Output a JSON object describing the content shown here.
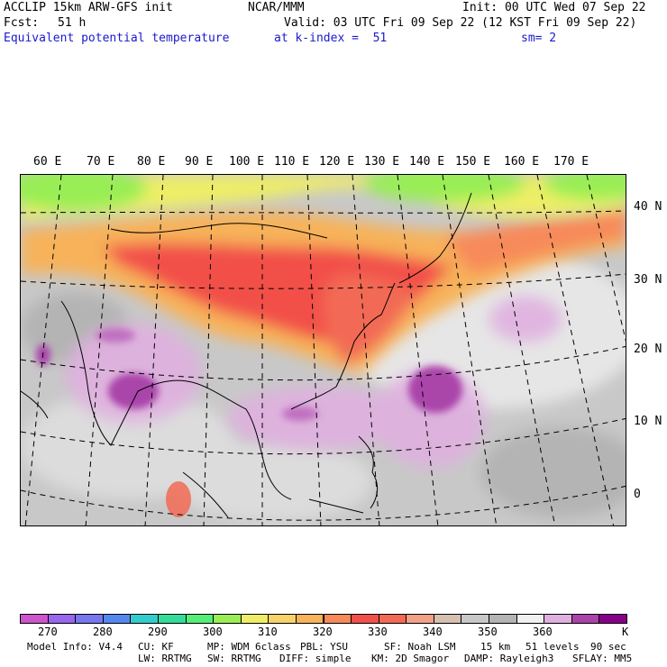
{
  "header": {
    "model": "ACCLIP 15km ARW-GFS init",
    "org": "NCAR/MMM",
    "init": "Init: 00 UTC Wed 07 Sep 22",
    "fcst_label": "Fcst:",
    "fcst_value": "51 h",
    "valid": "Valid: 03 UTC Fri 09 Sep 22 (12 KST Fri 09 Sep 22)",
    "field": "Equivalent potential temperature",
    "level": "at k-index =  51",
    "smooth": "sm= 2"
  },
  "map": {
    "lon_labels": [
      "60 E",
      "70 E",
      "80 E",
      "90 E",
      "100 E",
      "110 E",
      "120 E",
      "130 E",
      "140 E",
      "150 E",
      "160 E",
      "170 E"
    ],
    "lat_labels": [
      "40 N",
      "30 N",
      "20 N",
      "10 N",
      "0"
    ]
  },
  "colorbar": {
    "colors": [
      "#cc55cc",
      "#9966ee",
      "#7777ee",
      "#5588ee",
      "#33cccc",
      "#33dd99",
      "#55ee77",
      "#99ee55",
      "#eeee66",
      "#f7d36a",
      "#f7b25a",
      "#f78a5a",
      "#f2504a",
      "#f26a55",
      "#f2a088",
      "#d6c0b0",
      "#c8c8c8",
      "#b4b4b4",
      "#f0f0f0",
      "#e0b0e0",
      "#aa44aa",
      "#880088"
    ],
    "labels": [
      "270",
      "280",
      "290",
      "300",
      "310",
      "320",
      "330",
      "340",
      "350",
      "360"
    ],
    "unit": "K"
  },
  "footer": {
    "line1": [
      "Model Info: V4.4",
      "CU: KF",
      "MP: WDM 6class",
      "PBL: YSU",
      "SF: Noah LSM",
      "15 km",
      "51 levels",
      "90 sec"
    ],
    "line2": [
      "LW: RRTMG",
      "SW: RRTMG",
      "DIFF: simple",
      "KM: 2D Smagor",
      "DAMP: Rayleigh3",
      "SFLAY: MM5"
    ]
  }
}
